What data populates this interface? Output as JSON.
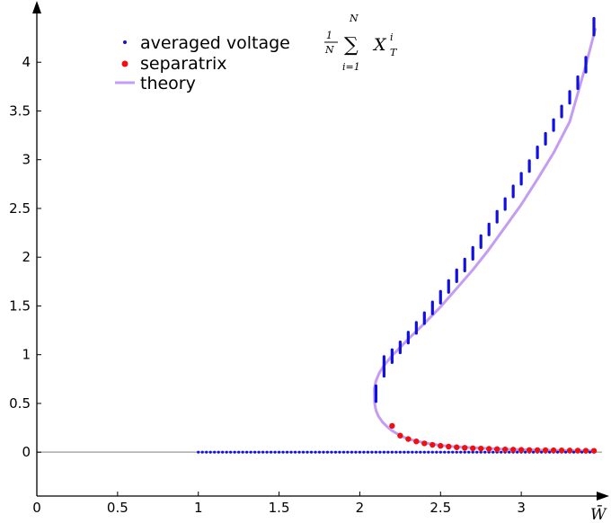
{
  "chart_data": {
    "type": "scatter",
    "xlabel": "W̄",
    "xlim": [
      0,
      3.5
    ],
    "ylim": [
      -0.45,
      4.5
    ],
    "x_ticks": [
      "0",
      "0.5",
      "1",
      "1.5",
      "2",
      "2.5",
      "3"
    ],
    "y_ticks": [
      "0",
      "0.5",
      "1",
      "1.5",
      "2",
      "2.5",
      "3",
      "3.5",
      "4"
    ],
    "legend": {
      "placement": "top-left",
      "entries": [
        "averaged voltage",
        "separatrix",
        "theory"
      ],
      "formula": {
        "frac_num": "1",
        "frac_den": "N",
        "sum_top": "N",
        "sum_bottom": "i=1",
        "symbol": "X",
        "superscript": "i",
        "subscript": "T"
      }
    },
    "colors": {
      "voltage": "#1010e0",
      "separatrix": "#ee1111",
      "theory": "#c49cf2",
      "baseline": "#aaaaaa"
    },
    "series": [
      {
        "name": "theory",
        "kind": "line",
        "x": [
          2.09,
          2.092,
          2.1,
          2.115,
          2.14,
          2.17,
          2.2,
          2.25,
          2.3,
          2.4,
          2.5,
          2.6,
          2.7,
          2.8,
          2.9,
          3.0,
          3.1,
          3.2,
          3.3,
          3.4,
          3.46
        ],
        "y": [
          0.65,
          0.5,
          0.43,
          0.37,
          0.31,
          0.26,
          0.22,
          0.17,
          0.135,
          0.095,
          0.07,
          0.055,
          0.045,
          0.037,
          0.031,
          0.026,
          0.022,
          0.019,
          0.016,
          0.014,
          0.013
        ],
        "upper_x": [
          2.09,
          2.1,
          2.12,
          2.15,
          2.2,
          2.3,
          2.4,
          2.5,
          2.6,
          2.7,
          2.8,
          2.9,
          3.0,
          3.1,
          3.2,
          3.3,
          3.4,
          3.46
        ],
        "upper_y": [
          0.65,
          0.73,
          0.81,
          0.89,
          0.99,
          1.16,
          1.32,
          1.49,
          1.68,
          1.87,
          2.08,
          2.31,
          2.54,
          2.8,
          3.07,
          3.39,
          3.97,
          4.35
        ]
      },
      {
        "name": "separatrix",
        "kind": "points",
        "x": [
          2.2,
          2.25,
          2.3,
          2.35,
          2.4,
          2.45,
          2.5,
          2.55,
          2.6,
          2.65,
          2.7,
          2.75,
          2.8,
          2.85,
          2.9,
          2.95,
          3.0,
          3.05,
          3.1,
          3.15,
          3.2,
          3.25,
          3.3,
          3.35,
          3.4,
          3.45
        ],
        "y": [
          0.27,
          0.17,
          0.135,
          0.11,
          0.09,
          0.075,
          0.065,
          0.057,
          0.05,
          0.045,
          0.04,
          0.037,
          0.034,
          0.031,
          0.028,
          0.026,
          0.024,
          0.022,
          0.021,
          0.02,
          0.019,
          0.018,
          0.017,
          0.016,
          0.015,
          0.014
        ]
      },
      {
        "name": "averaged voltage",
        "kind": "points",
        "lower_x_start": 1.0,
        "lower_x_end": 3.45,
        "lower_x_step": 0.025,
        "lower_y": 0.0,
        "upper_x": [
          2.1,
          2.15,
          2.2,
          2.25,
          2.3,
          2.35,
          2.4,
          2.45,
          2.5,
          2.55,
          2.6,
          2.65,
          2.7,
          2.75,
          2.8,
          2.85,
          2.9,
          2.95,
          3.0,
          3.05,
          3.1,
          3.15,
          3.2,
          3.25,
          3.3,
          3.35,
          3.4,
          3.45
        ],
        "upper_y_low": [
          0.52,
          0.78,
          0.92,
          1.02,
          1.12,
          1.22,
          1.32,
          1.42,
          1.53,
          1.64,
          1.75,
          1.86,
          1.98,
          2.1,
          2.23,
          2.36,
          2.49,
          2.62,
          2.75,
          2.88,
          3.02,
          3.16,
          3.3,
          3.44,
          3.58,
          3.73,
          3.9,
          4.28
        ],
        "upper_y_high": [
          0.68,
          0.98,
          1.05,
          1.13,
          1.23,
          1.33,
          1.43,
          1.54,
          1.65,
          1.76,
          1.87,
          1.98,
          2.1,
          2.22,
          2.34,
          2.47,
          2.6,
          2.73,
          2.86,
          2.99,
          3.13,
          3.27,
          3.41,
          3.55,
          3.7,
          3.85,
          4.05,
          4.45
        ]
      },
      {
        "name": "baseline",
        "kind": "line",
        "x": [
          0,
          3.5
        ],
        "y": [
          0,
          0
        ]
      }
    ]
  }
}
